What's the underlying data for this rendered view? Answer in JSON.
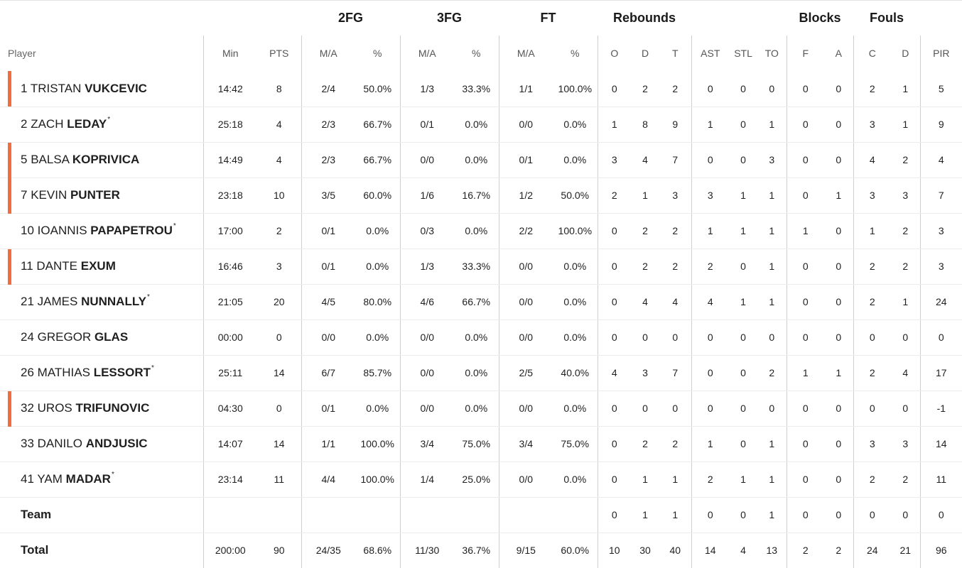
{
  "group_headers": [
    "2FG",
    "3FG",
    "FT",
    "Rebounds",
    "Blocks",
    "Fouls"
  ],
  "column_headers": [
    "Player",
    "Min",
    "PTS",
    "M/A",
    "%",
    "M/A",
    "%",
    "M/A",
    "%",
    "O",
    "D",
    "T",
    "AST",
    "STL",
    "TO",
    "F",
    "A",
    "C",
    "D",
    "PIR"
  ],
  "accent_color": "#f26d3d",
  "players": [
    {
      "num": "1",
      "first": "TRISTAN",
      "last": "VUKCEVIC",
      "starter": "",
      "marked": true,
      "stats": [
        "14:42",
        "8",
        "2/4",
        "50.0%",
        "1/3",
        "33.3%",
        "1/1",
        "100.0%",
        "0",
        "2",
        "2",
        "0",
        "0",
        "0",
        "0",
        "0",
        "2",
        "1",
        "5"
      ]
    },
    {
      "num": "2",
      "first": "ZACH",
      "last": "LEDAY",
      "starter": "*",
      "marked": false,
      "stats": [
        "25:18",
        "4",
        "2/3",
        "66.7%",
        "0/1",
        "0.0%",
        "0/0",
        "0.0%",
        "1",
        "8",
        "9",
        "1",
        "0",
        "1",
        "0",
        "0",
        "3",
        "1",
        "9"
      ]
    },
    {
      "num": "5",
      "first": "BALSA",
      "last": "KOPRIVICA",
      "starter": "",
      "marked": true,
      "stats": [
        "14:49",
        "4",
        "2/3",
        "66.7%",
        "0/0",
        "0.0%",
        "0/1",
        "0.0%",
        "3",
        "4",
        "7",
        "0",
        "0",
        "3",
        "0",
        "0",
        "4",
        "2",
        "4"
      ]
    },
    {
      "num": "7",
      "first": "KEVIN",
      "last": "PUNTER",
      "starter": "",
      "marked": true,
      "stats": [
        "23:18",
        "10",
        "3/5",
        "60.0%",
        "1/6",
        "16.7%",
        "1/2",
        "50.0%",
        "2",
        "1",
        "3",
        "3",
        "1",
        "1",
        "0",
        "1",
        "3",
        "3",
        "7"
      ]
    },
    {
      "num": "10",
      "first": "IOANNIS",
      "last": "PAPAPETROU",
      "starter": "*",
      "marked": false,
      "stats": [
        "17:00",
        "2",
        "0/1",
        "0.0%",
        "0/3",
        "0.0%",
        "2/2",
        "100.0%",
        "0",
        "2",
        "2",
        "1",
        "1",
        "1",
        "1",
        "0",
        "1",
        "2",
        "3"
      ]
    },
    {
      "num": "11",
      "first": "DANTE",
      "last": "EXUM",
      "starter": "",
      "marked": true,
      "stats": [
        "16:46",
        "3",
        "0/1",
        "0.0%",
        "1/3",
        "33.3%",
        "0/0",
        "0.0%",
        "0",
        "2",
        "2",
        "2",
        "0",
        "1",
        "0",
        "0",
        "2",
        "2",
        "3"
      ]
    },
    {
      "num": "21",
      "first": "JAMES",
      "last": "NUNNALLY",
      "starter": "*",
      "marked": false,
      "stats": [
        "21:05",
        "20",
        "4/5",
        "80.0%",
        "4/6",
        "66.7%",
        "0/0",
        "0.0%",
        "0",
        "4",
        "4",
        "4",
        "1",
        "1",
        "0",
        "0",
        "2",
        "1",
        "24"
      ]
    },
    {
      "num": "24",
      "first": "GREGOR",
      "last": "GLAS",
      "starter": "",
      "marked": false,
      "stats": [
        "00:00",
        "0",
        "0/0",
        "0.0%",
        "0/0",
        "0.0%",
        "0/0",
        "0.0%",
        "0",
        "0",
        "0",
        "0",
        "0",
        "0",
        "0",
        "0",
        "0",
        "0",
        "0"
      ]
    },
    {
      "num": "26",
      "first": "MATHIAS",
      "last": "LESSORT",
      "starter": "*",
      "marked": false,
      "stats": [
        "25:11",
        "14",
        "6/7",
        "85.7%",
        "0/0",
        "0.0%",
        "2/5",
        "40.0%",
        "4",
        "3",
        "7",
        "0",
        "0",
        "2",
        "1",
        "1",
        "2",
        "4",
        "17"
      ]
    },
    {
      "num": "32",
      "first": "UROS",
      "last": "TRIFUNOVIC",
      "starter": "",
      "marked": true,
      "stats": [
        "04:30",
        "0",
        "0/1",
        "0.0%",
        "0/0",
        "0.0%",
        "0/0",
        "0.0%",
        "0",
        "0",
        "0",
        "0",
        "0",
        "0",
        "0",
        "0",
        "0",
        "0",
        "-1"
      ]
    },
    {
      "num": "33",
      "first": "DANILO",
      "last": "ANDJUSIC",
      "starter": "",
      "marked": false,
      "stats": [
        "14:07",
        "14",
        "1/1",
        "100.0%",
        "3/4",
        "75.0%",
        "3/4",
        "75.0%",
        "0",
        "2",
        "2",
        "1",
        "0",
        "1",
        "0",
        "0",
        "3",
        "3",
        "14"
      ]
    },
    {
      "num": "41",
      "first": "YAM",
      "last": "MADAR",
      "starter": "*",
      "marked": false,
      "stats": [
        "23:14",
        "11",
        "4/4",
        "100.0%",
        "1/4",
        "25.0%",
        "0/0",
        "0.0%",
        "0",
        "1",
        "1",
        "2",
        "1",
        "1",
        "0",
        "0",
        "2",
        "2",
        "11"
      ]
    }
  ],
  "team": {
    "label": "Team",
    "stats": [
      "",
      "",
      "",
      "",
      "",
      "",
      "",
      "",
      "0",
      "1",
      "1",
      "0",
      "0",
      "1",
      "0",
      "0",
      "0",
      "0",
      "0"
    ]
  },
  "total": {
    "label": "Total",
    "stats": [
      "200:00",
      "90",
      "24/35",
      "68.6%",
      "11/30",
      "36.7%",
      "9/15",
      "60.0%",
      "10",
      "30",
      "40",
      "14",
      "4",
      "13",
      "2",
      "2",
      "24",
      "21",
      "96"
    ]
  }
}
